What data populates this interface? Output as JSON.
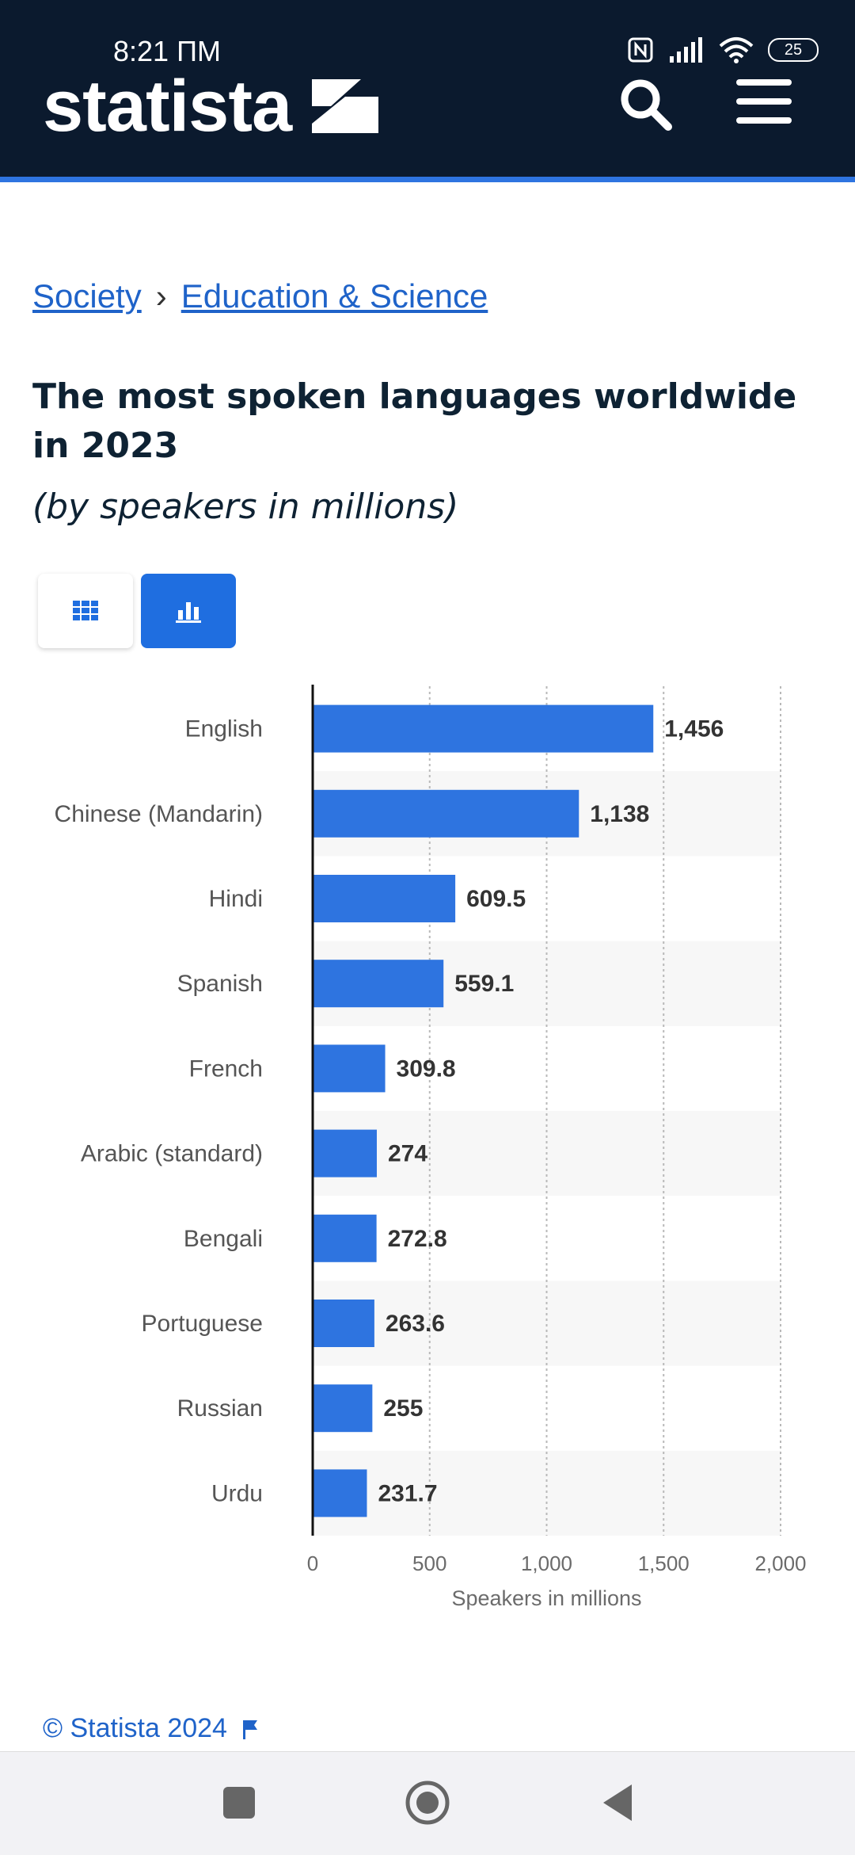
{
  "status_bar": {
    "time": "8:21 ПМ",
    "battery": "25"
  },
  "header": {
    "logo_text": "statista"
  },
  "breadcrumb": {
    "items": [
      "Society",
      "Education & Science"
    ],
    "separator": "›"
  },
  "page": {
    "title": "The most spoken languages worldwide in 2023",
    "subtitle": "(by speakers in millions)"
  },
  "view_toggle": {
    "options": [
      "table-icon",
      "bar-chart-icon"
    ],
    "selected": "bar-chart-icon"
  },
  "chart_data": {
    "type": "bar",
    "orientation": "horizontal",
    "categories": [
      "English",
      "Chinese (Mandarin)",
      "Hindi",
      "Spanish",
      "French",
      "Arabic (standard)",
      "Bengali",
      "Portuguese",
      "Russian",
      "Urdu"
    ],
    "values": [
      1456,
      1138,
      609.5,
      559.1,
      309.8,
      274,
      272.8,
      263.6,
      255,
      231.7
    ],
    "value_labels": [
      "1,456",
      "1,138",
      "609.5",
      "559.1",
      "309.8",
      "274",
      "272.8",
      "263.6",
      "255",
      "231.7"
    ],
    "xticks": [
      "0",
      "500",
      "1,000",
      "1,500",
      "2,000"
    ],
    "xlim": [
      0,
      2000
    ],
    "xlabel": "Speakers in millions",
    "bar_color": "#2e74e0",
    "grid": true
  },
  "footer": {
    "copyright": "© Statista 2024"
  },
  "colors": {
    "header_bg": "#0b1a2e",
    "accent": "#2e74e0",
    "link": "#1f63c9"
  }
}
